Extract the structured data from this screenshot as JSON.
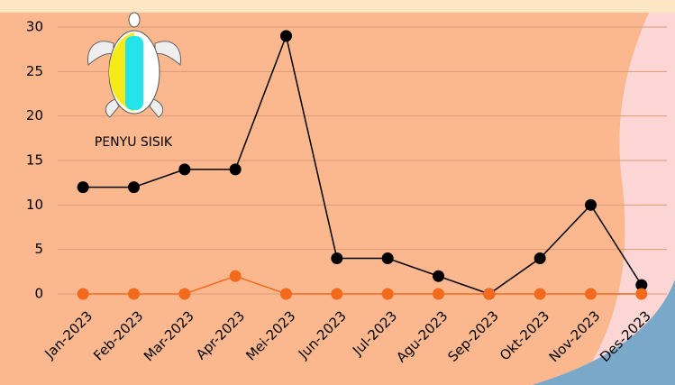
{
  "chart_data": {
    "type": "line",
    "annotation": "PENYU SISIK",
    "categories": [
      "Jan-2023",
      "Feb-2023",
      "Mar-2023",
      "Apr-2023",
      "Mei-2023",
      "Jun-2023",
      "Jul-2023",
      "Agu-2023",
      "Sep-2023",
      "Okt-2023",
      "Nov-2023",
      "Des-2023"
    ],
    "series": [
      {
        "color": "#000000",
        "values": [
          12,
          12,
          14,
          14,
          29,
          4,
          4,
          2,
          0,
          4,
          10,
          1
        ]
      },
      {
        "color": "#f26b1d",
        "values": [
          0,
          0,
          0,
          2,
          0,
          0,
          0,
          0,
          0,
          0,
          0,
          0
        ]
      }
    ],
    "ylim": [
      0,
      30
    ],
    "yticks": [
      0,
      5,
      10,
      15,
      20,
      25,
      30
    ],
    "grid": true
  }
}
